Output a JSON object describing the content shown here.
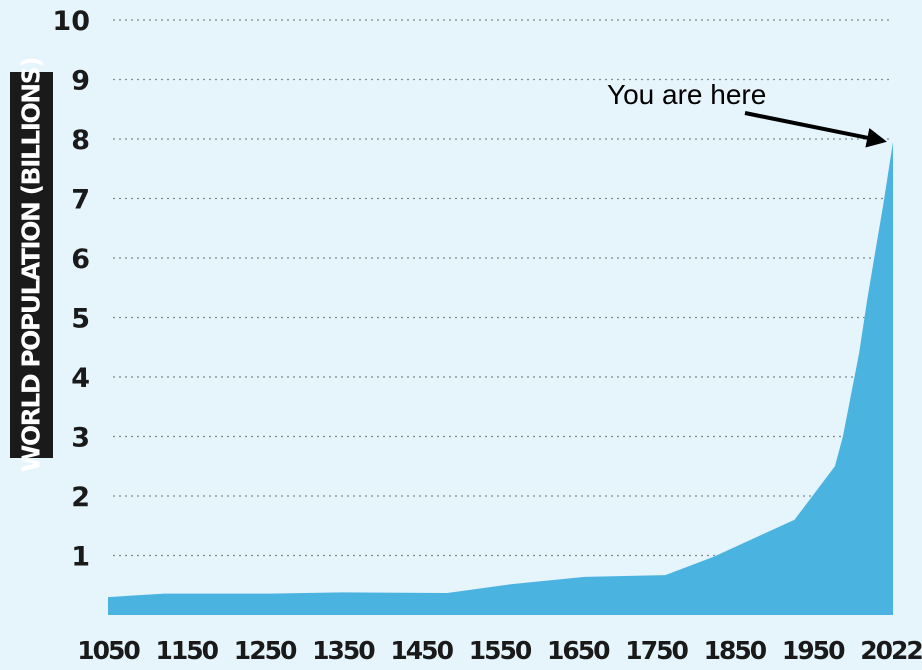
{
  "chart_data": {
    "type": "area",
    "ylabel": "WORLD POPULATION (BILLIONS)",
    "xlabel": "",
    "x_ticks": [
      "1050",
      "1150",
      "1250",
      "1350",
      "1450",
      "1550",
      "1650",
      "1750",
      "1850",
      "1950",
      "2022"
    ],
    "y_ticks": [
      "1",
      "2",
      "3",
      "4",
      "5",
      "6",
      "7",
      "8",
      "9",
      "10"
    ],
    "xlim": [
      1050,
      2022
    ],
    "ylim": [
      0,
      10
    ],
    "grid": "horizontal dotted",
    "fill_color": "#4bb3e0",
    "points": [
      {
        "x": 1050,
        "y": 0.3
      },
      {
        "x": 1120,
        "y": 0.36
      },
      {
        "x": 1250,
        "y": 0.36
      },
      {
        "x": 1340,
        "y": 0.38
      },
      {
        "x": 1470,
        "y": 0.37
      },
      {
        "x": 1550,
        "y": 0.52
      },
      {
        "x": 1640,
        "y": 0.64
      },
      {
        "x": 1740,
        "y": 0.67
      },
      {
        "x": 1800,
        "y": 0.98
      },
      {
        "x": 1900,
        "y": 1.6
      },
      {
        "x": 1950,
        "y": 2.5
      },
      {
        "x": 1960,
        "y": 3.0
      },
      {
        "x": 1970,
        "y": 3.7
      },
      {
        "x": 1980,
        "y": 4.4
      },
      {
        "x": 1990,
        "y": 5.3
      },
      {
        "x": 2000,
        "y": 6.1
      },
      {
        "x": 2010,
        "y": 6.9
      },
      {
        "x": 2022,
        "y": 7.95
      }
    ],
    "annotation": {
      "text": "You are here",
      "x": 2022,
      "y": 7.95
    }
  }
}
